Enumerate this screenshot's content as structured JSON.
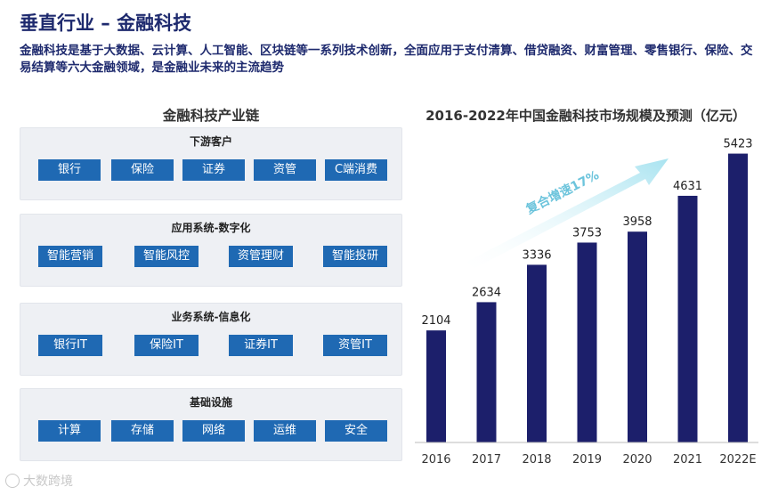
{
  "page": {
    "title": "垂直行业 – 金融科技",
    "intro": "金融科技是基于大数据、云计算、人工智能、区块链等一系列技术创新，全面应用于支付清算、借贷融资、财富管理、零售银行、保险、交易结算等六大金融领域，是金融业未来的主流趋势"
  },
  "industry_chain": {
    "title": "金融科技产业链",
    "layers": [
      {
        "title": "下游客户",
        "items": [
          "银行",
          "保险",
          "证券",
          "资管",
          "C端消费"
        ]
      },
      {
        "title": "应用系统-数字化",
        "items": [
          "智能营销",
          "智能风控",
          "资管理财",
          "智能投研"
        ]
      },
      {
        "title": "业务系统-信息化",
        "items": [
          "银行IT",
          "保险IT",
          "证券IT",
          "资管IT"
        ]
      },
      {
        "title": "基础设施",
        "items": [
          "计算",
          "存储",
          "网络",
          "运维",
          "安全"
        ]
      }
    ]
  },
  "chart_data": {
    "type": "bar",
    "title": "2016-2022年中国金融科技市场规模及预测（亿元）",
    "categories": [
      "2016",
      "2017",
      "2018",
      "2019",
      "2020",
      "2021",
      "2022E"
    ],
    "values": [
      2104,
      2634,
      3336,
      3753,
      3958,
      4631,
      5423
    ],
    "ylim": [
      0,
      5800
    ],
    "annotation": "复合增速17%",
    "colors": {
      "bar": "#1c1f6b",
      "arrow": "#a8e3f0"
    }
  },
  "watermark": "大数跨境"
}
